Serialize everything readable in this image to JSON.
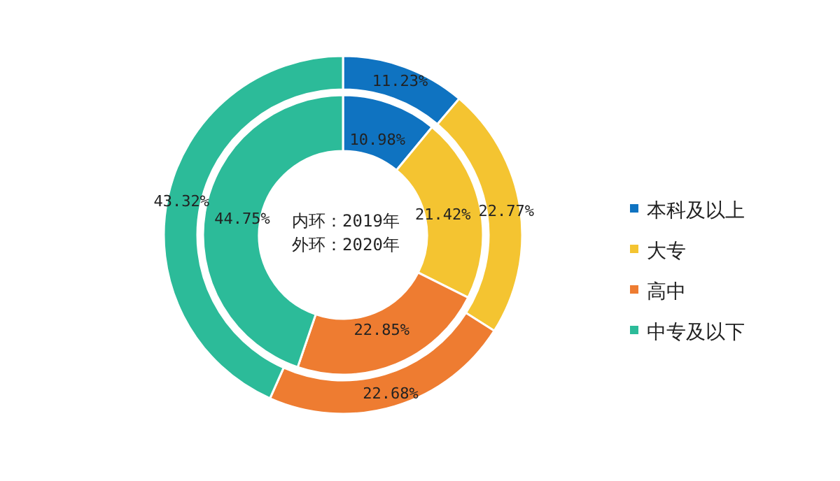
{
  "chart_data": {
    "type": "donut",
    "categories": [
      "本科及以上",
      "大专",
      "高中",
      "中专及以下"
    ],
    "colors": [
      "#0f73c1",
      "#f4c431",
      "#ee7c31",
      "#2cbb99"
    ],
    "series": [
      {
        "values": [
          10.98,
          21.42,
          22.85,
          44.75
        ],
        "value_labels": [
          "10.98%",
          "21.42%",
          "22.85%",
          "44.75%"
        ]
      },
      {
        "values": [
          11.23,
          22.77,
          22.68,
          43.32
        ],
        "value_labels": [
          "11.23%",
          "22.77%",
          "22.68%",
          "43.32%"
        ]
      }
    ],
    "annotations": [
      "内环：2019年",
      "外环：2020年"
    ],
    "legend": "right"
  }
}
